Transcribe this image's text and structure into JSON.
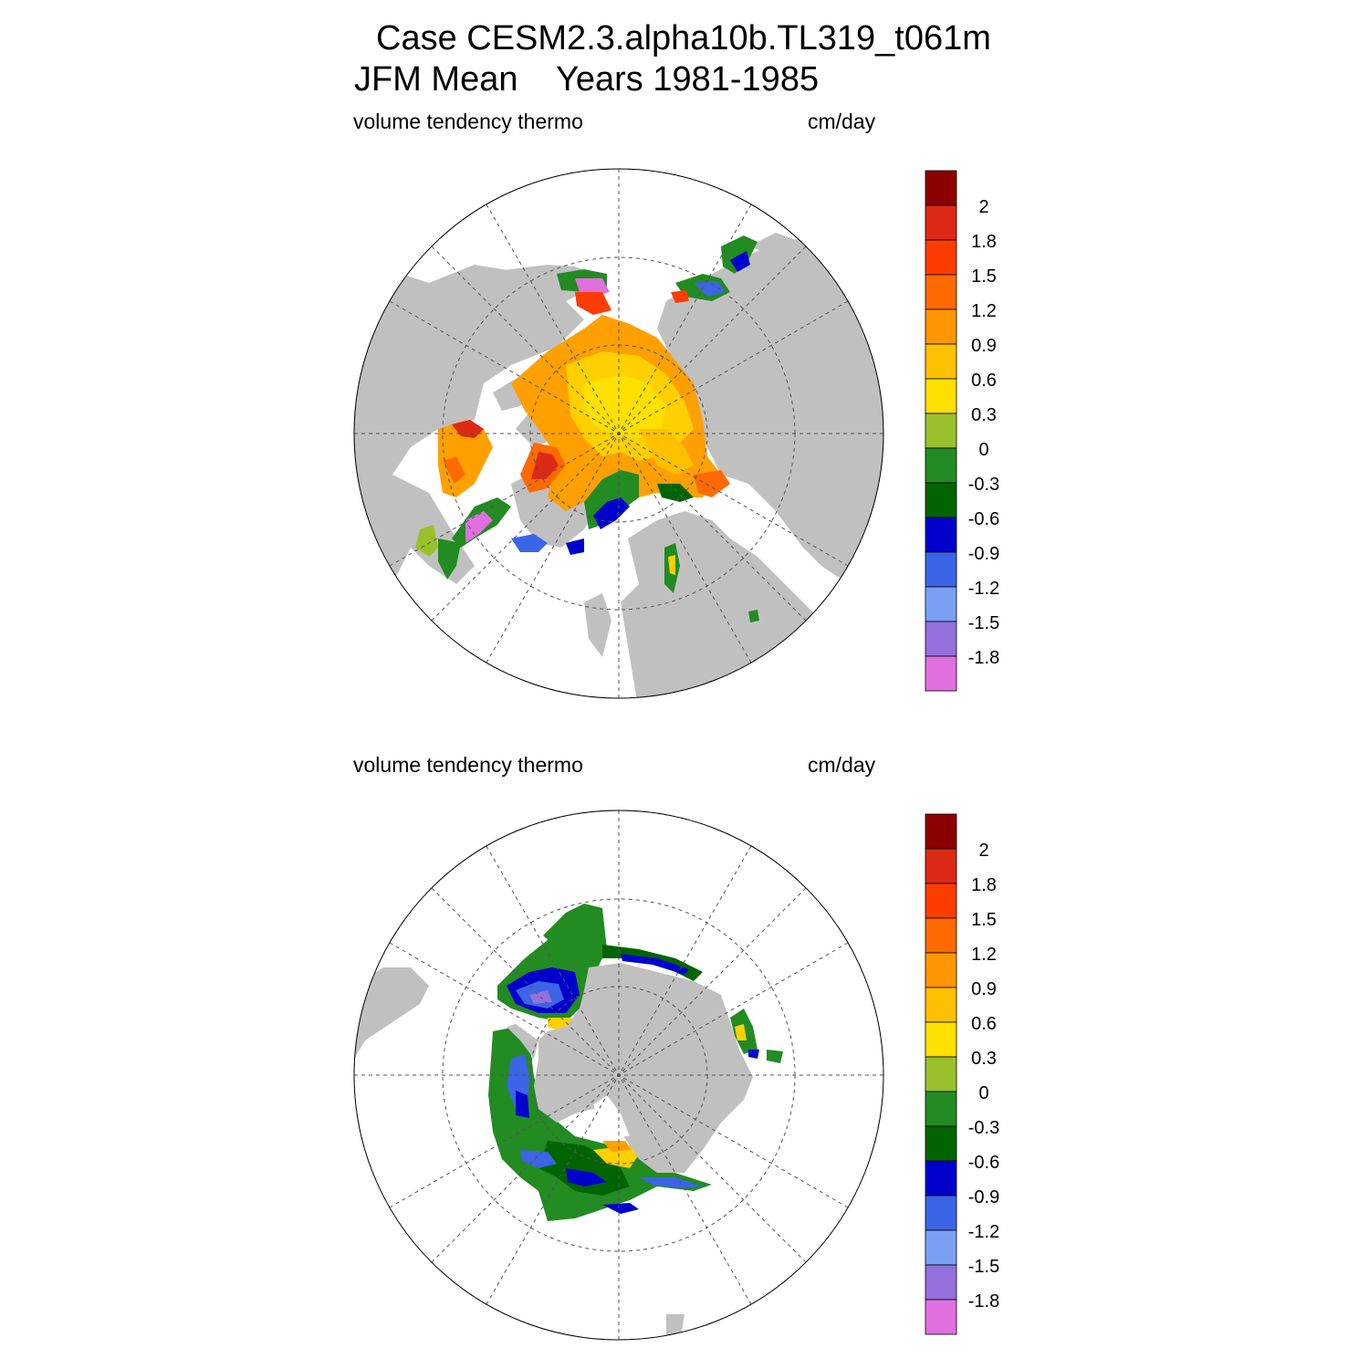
{
  "title": {
    "line1": "Case CESM2.3.alpha10b.TL319_t061m",
    "line2": "JFM Mean    Years 1981-1985"
  },
  "panels": [
    {
      "id": "north",
      "left_label": "volume tendency thermo",
      "right_label": "cm/day"
    },
    {
      "id": "south",
      "left_label": "volume tendency thermo",
      "right_label": "cm/day"
    }
  ],
  "colorbar": {
    "labels": [
      "2",
      "1.8",
      "1.5",
      "1.2",
      "0.9",
      "0.6",
      "0.3",
      "0",
      "-0.3",
      "-0.6",
      "-0.9",
      "-1.2",
      "-1.5",
      "-1.8"
    ],
    "colors": [
      "#8b0000",
      "#dc2a14",
      "#ff3c00",
      "#ff6a00",
      "#ff9600",
      "#ffc000",
      "#ffe000",
      "#9ac02c",
      "#228b22",
      "#006400",
      "#0000cd",
      "#3c64e6",
      "#7aa0f4",
      "#9370db",
      "#e070e0"
    ]
  },
  "colors": {
    "land": "#c0c0c0",
    "ocean": "#ffffff",
    "grid": "#555555"
  }
}
